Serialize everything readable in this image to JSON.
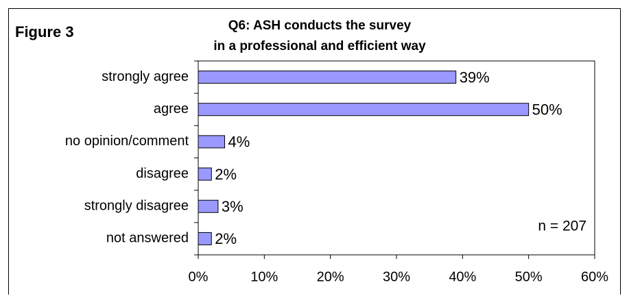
{
  "chart_data": {
    "type": "barh",
    "figure_label": "Figure 3",
    "title": [
      "Q6: ASH conducts the survey",
      "in a professional and efficient way"
    ],
    "categories": [
      "strongly agree",
      "agree",
      "no opinion/comment",
      "disagree",
      "strongly disagree",
      "not answered"
    ],
    "values": [
      39,
      50,
      4,
      2,
      3,
      2
    ],
    "value_labels": [
      "39%",
      "50%",
      "4%",
      "2%",
      "3%",
      "2%"
    ],
    "color": "#9999ff",
    "xlim": [
      0,
      60
    ],
    "xticks": [
      {
        "value": 0,
        "label": "0%"
      },
      {
        "value": 10,
        "label": "10%"
      },
      {
        "value": 20,
        "label": "20%"
      },
      {
        "value": 30,
        "label": "30%"
      },
      {
        "value": 40,
        "label": "40%"
      },
      {
        "value": 50,
        "label": "50%"
      },
      {
        "value": 60,
        "label": "60%"
      }
    ],
    "grid": false,
    "annotation": "n = 207"
  }
}
